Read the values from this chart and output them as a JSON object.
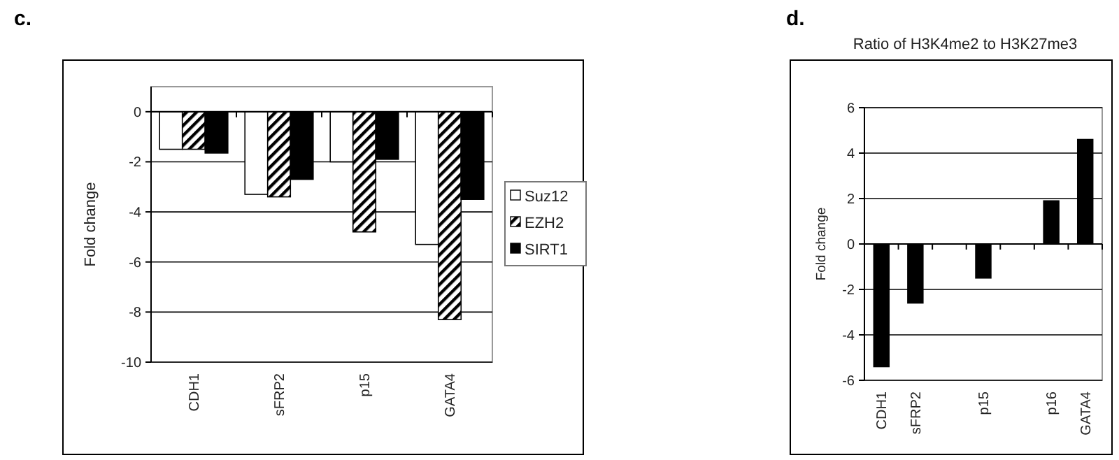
{
  "chart_data": [
    {
      "type": "bar",
      "annotations": [
        "c."
      ],
      "ylabel": "Fold change",
      "categories": [
        "CDH1",
        "sFRP2",
        "p15",
        "GATA4"
      ],
      "series": [
        {
          "name": "Suz12",
          "color": "#ffffff",
          "values": [
            -1.5,
            -3.3,
            -2.0,
            -5.3
          ]
        },
        {
          "name": "EZH2",
          "color": "#000000",
          "values": [
            -1.5,
            -3.4,
            -4.8,
            -8.3
          ]
        },
        {
          "name": "SIRT1",
          "color": "#000000",
          "values": [
            -1.65,
            -2.7,
            -1.9,
            -3.5
          ]
        }
      ],
      "ylim": [
        -10,
        1
      ],
      "yticks": [
        -10,
        -8,
        -6,
        -4,
        -2,
        0
      ],
      "grid": "y",
      "legend": "right"
    },
    {
      "type": "bar",
      "annotations": [
        "d."
      ],
      "title": "Ratio of H3K4me2 to H3K27me3",
      "ylabel": "Fold change",
      "categories": [
        "CDH1",
        "sFRP2",
        null,
        "p15",
        null,
        "p16",
        "GATA4"
      ],
      "series": [
        {
          "color": "#000000",
          "values": [
            -5.4,
            -2.6,
            null,
            -1.5,
            null,
            1.9,
            4.6
          ]
        }
      ],
      "ylim": [
        -6,
        6
      ],
      "yticks": [
        -6,
        -4,
        -2,
        0,
        2,
        4,
        6
      ],
      "grid": "y"
    }
  ]
}
